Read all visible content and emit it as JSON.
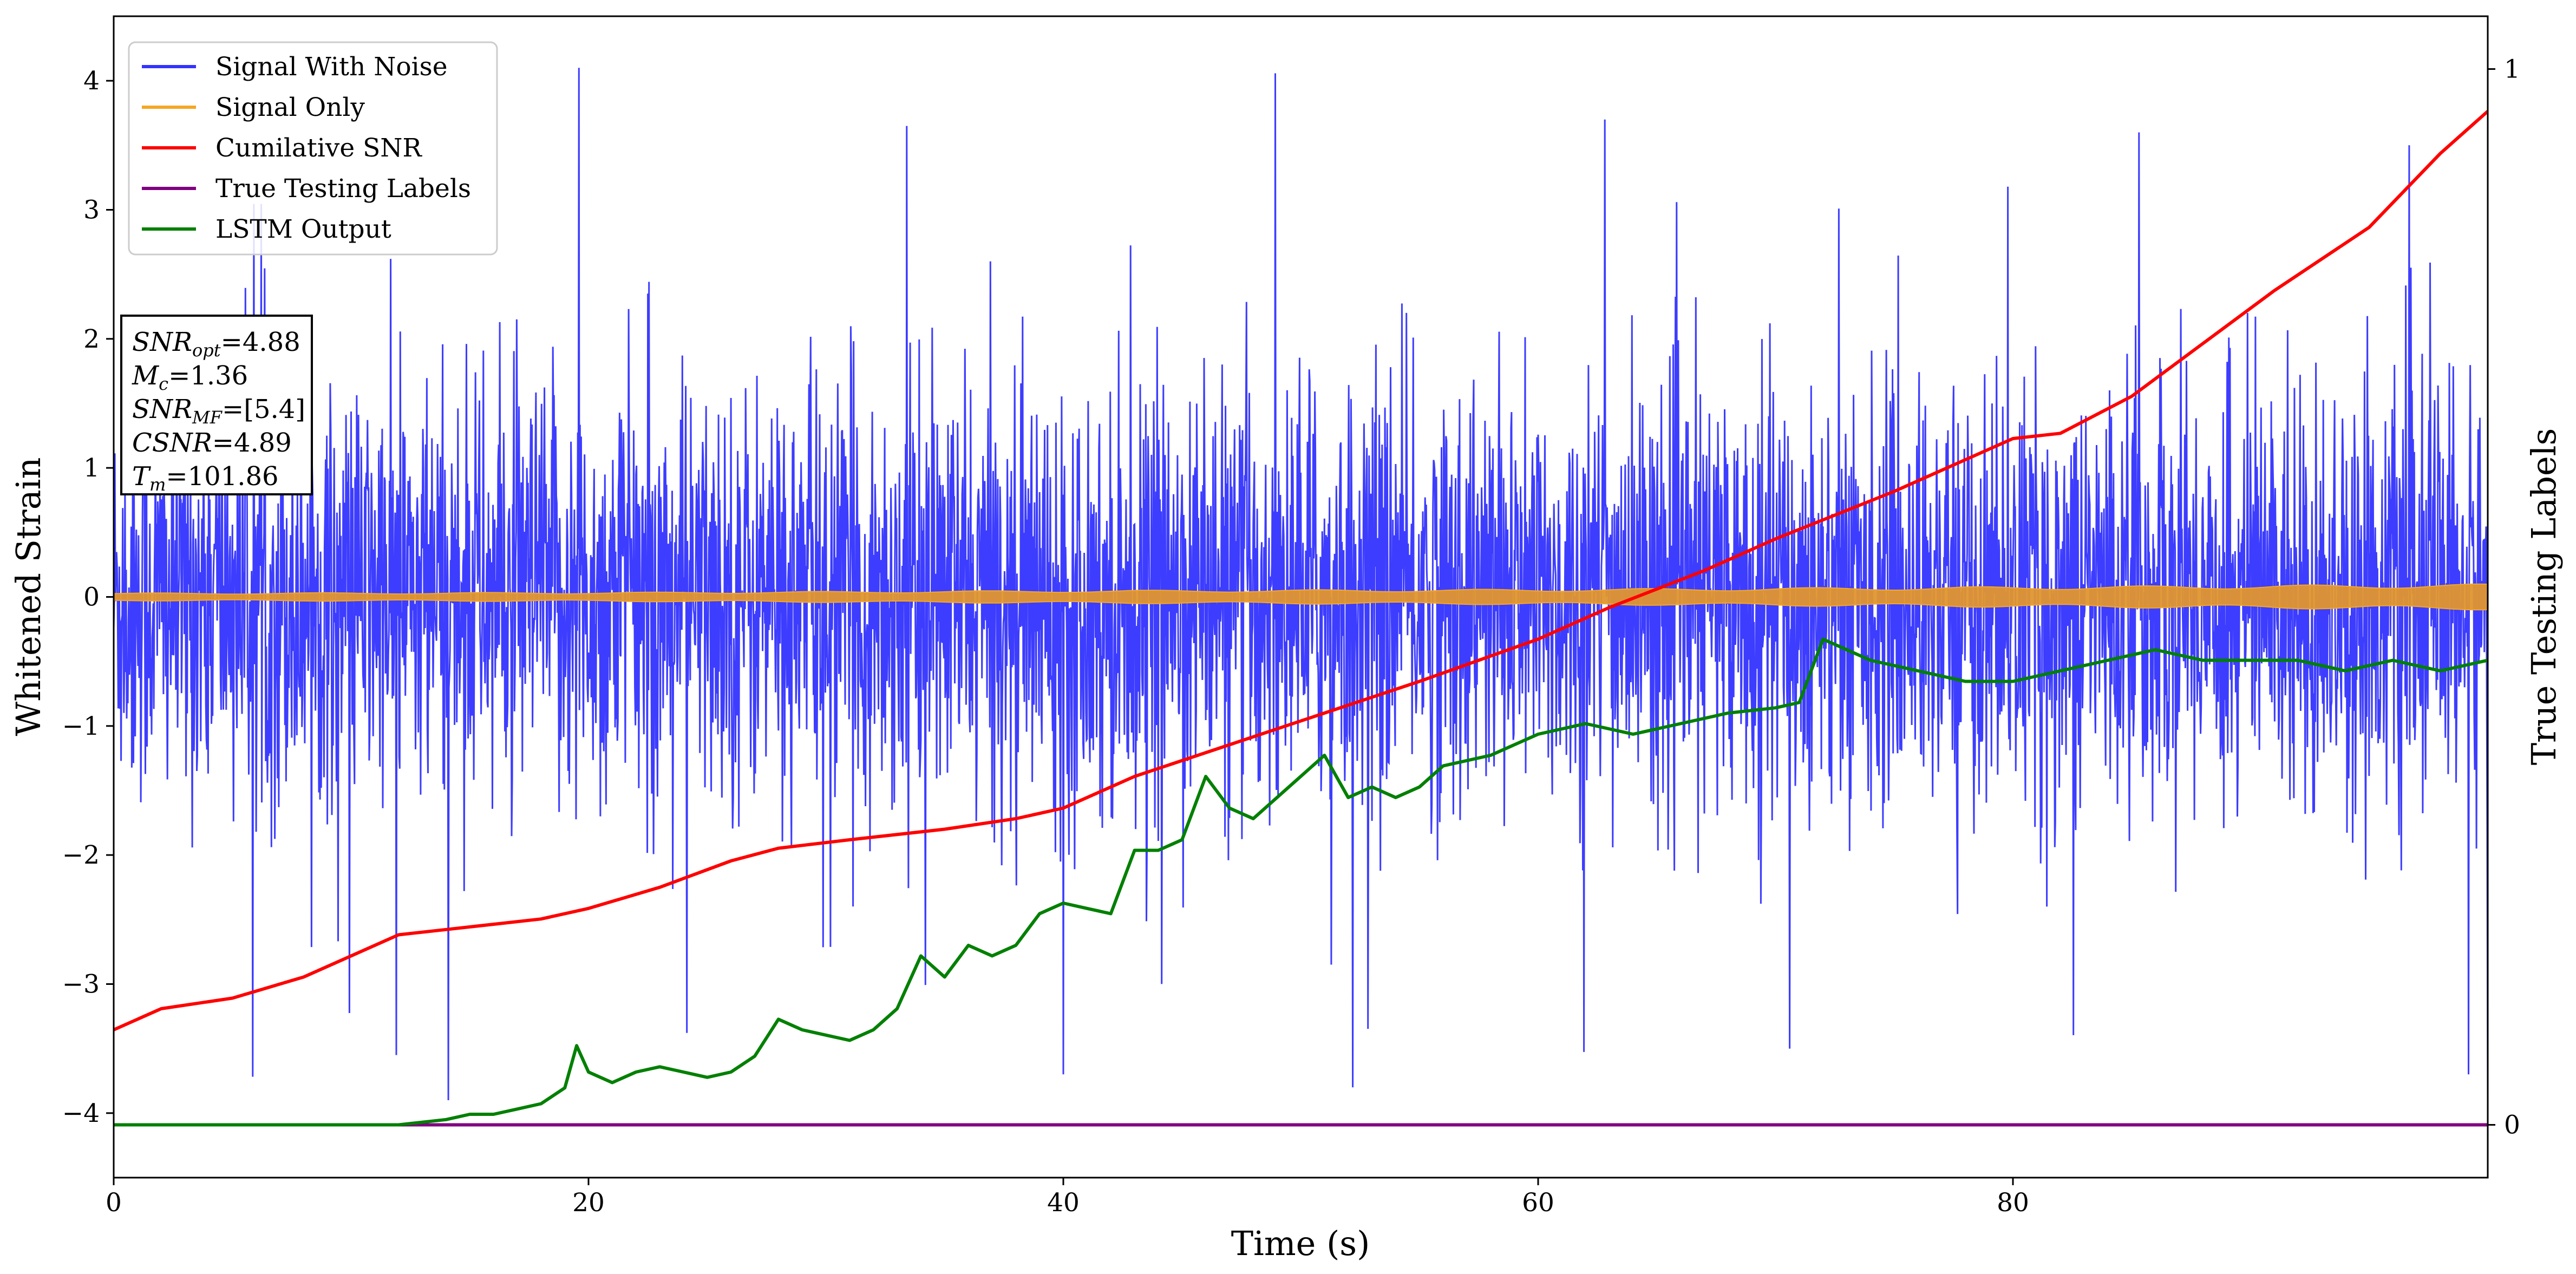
{
  "chart_data": {
    "type": "line",
    "xlabel": "Time (s)",
    "ylabel": "Whitened Strain",
    "y2label": "True Testing Labels",
    "xlim": [
      0,
      100
    ],
    "ylim": [
      -4.5,
      4.5
    ],
    "y2lim": [
      -0.05,
      1.05
    ],
    "xticks": [
      "0",
      "20",
      "40",
      "60",
      "80"
    ],
    "yticks": [
      "−4",
      "−3",
      "−2",
      "−1",
      "0",
      "1",
      "2",
      "3",
      "4"
    ],
    "y2ticks": [
      "0",
      "1"
    ],
    "legend_position": "top-left",
    "series": [
      {
        "name": "Signal With Noise",
        "axis": "left",
        "color": "#3333ff",
        "note_style": "dense noisy trace",
        "peak_spikes": [
          {
            "x": 19.6,
            "y": 4.1
          },
          {
            "x": 52.2,
            "y": -3.8
          },
          {
            "x": 11.9,
            "y": -3.55
          },
          {
            "x": 99.2,
            "y": -3.7
          },
          {
            "x": 40.0,
            "y": -3.7
          },
          {
            "x": 70.6,
            "y": -3.5
          },
          {
            "x": 33.4,
            "y": 3.65
          },
          {
            "x": 62.8,
            "y": 3.7
          },
          {
            "x": 85.3,
            "y": 3.6
          },
          {
            "x": 96.7,
            "y": 3.5
          }
        ]
      },
      {
        "name": "Signal Only",
        "axis": "left",
        "color": "#f5a623",
        "amplitude_envelope": [
          [
            0,
            0.03
          ],
          [
            20,
            0.035
          ],
          [
            40,
            0.05
          ],
          [
            60,
            0.06
          ],
          [
            80,
            0.08
          ],
          [
            100,
            0.1
          ]
        ]
      },
      {
        "name": "Cumilative SNR",
        "axis": "right",
        "color": "#ff0000",
        "points": [
          [
            0,
            0.09
          ],
          [
            2,
            0.11
          ],
          [
            5,
            0.12
          ],
          [
            8,
            0.14
          ],
          [
            10,
            0.16
          ],
          [
            12,
            0.18
          ],
          [
            14,
            0.185
          ],
          [
            18,
            0.195
          ],
          [
            20,
            0.205
          ],
          [
            23,
            0.225
          ],
          [
            26,
            0.25
          ],
          [
            28,
            0.262
          ],
          [
            31,
            0.27
          ],
          [
            35,
            0.28
          ],
          [
            38,
            0.29
          ],
          [
            40,
            0.3
          ],
          [
            43,
            0.33
          ],
          [
            47,
            0.36
          ],
          [
            51,
            0.39
          ],
          [
            55,
            0.42
          ],
          [
            60,
            0.46
          ],
          [
            63,
            0.49
          ],
          [
            67,
            0.525
          ],
          [
            70,
            0.555
          ],
          [
            75,
            0.6
          ],
          [
            78,
            0.63
          ],
          [
            80,
            0.65
          ],
          [
            82,
            0.655
          ],
          [
            85,
            0.69
          ],
          [
            88,
            0.74
          ],
          [
            91,
            0.79
          ],
          [
            95,
            0.85
          ],
          [
            98,
            0.92
          ],
          [
            100,
            0.96
          ]
        ]
      },
      {
        "name": "True Testing Labels",
        "axis": "right",
        "color": "#800080",
        "points": [
          [
            0,
            0
          ],
          [
            100,
            0
          ]
        ]
      },
      {
        "name": "LSTM Output",
        "axis": "right",
        "color": "#008000",
        "points": [
          [
            0,
            0
          ],
          [
            10,
            0
          ],
          [
            12,
            0
          ],
          [
            14,
            0.005
          ],
          [
            15,
            0.01
          ],
          [
            16,
            0.01
          ],
          [
            17,
            0.015
          ],
          [
            18,
            0.02
          ],
          [
            19,
            0.035
          ],
          [
            19.5,
            0.075
          ],
          [
            20,
            0.05
          ],
          [
            21,
            0.04
          ],
          [
            22,
            0.05
          ],
          [
            23,
            0.055
          ],
          [
            24,
            0.05
          ],
          [
            25,
            0.045
          ],
          [
            26,
            0.05
          ],
          [
            27,
            0.065
          ],
          [
            28,
            0.1
          ],
          [
            29,
            0.09
          ],
          [
            30,
            0.085
          ],
          [
            31,
            0.08
          ],
          [
            32,
            0.09
          ],
          [
            33,
            0.11
          ],
          [
            34,
            0.16
          ],
          [
            35,
            0.14
          ],
          [
            36,
            0.17
          ],
          [
            37,
            0.16
          ],
          [
            38,
            0.17
          ],
          [
            39,
            0.2
          ],
          [
            40,
            0.21
          ],
          [
            41,
            0.205
          ],
          [
            42,
            0.2
          ],
          [
            43,
            0.26
          ],
          [
            44,
            0.26
          ],
          [
            45,
            0.27
          ],
          [
            46,
            0.33
          ],
          [
            47,
            0.3
          ],
          [
            48,
            0.29
          ],
          [
            50,
            0.33
          ],
          [
            51,
            0.35
          ],
          [
            52,
            0.31
          ],
          [
            53,
            0.32
          ],
          [
            54,
            0.31
          ],
          [
            55,
            0.32
          ],
          [
            56,
            0.34
          ],
          [
            58,
            0.35
          ],
          [
            60,
            0.37
          ],
          [
            62,
            0.38
          ],
          [
            64,
            0.37
          ],
          [
            66,
            0.38
          ],
          [
            68,
            0.39
          ],
          [
            70,
            0.395
          ],
          [
            71,
            0.4
          ],
          [
            72,
            0.46
          ],
          [
            73,
            0.45
          ],
          [
            74,
            0.44
          ],
          [
            76,
            0.43
          ],
          [
            78,
            0.42
          ],
          [
            80,
            0.42
          ],
          [
            82,
            0.43
          ],
          [
            84,
            0.44
          ],
          [
            86,
            0.45
          ],
          [
            88,
            0.44
          ],
          [
            90,
            0.44
          ],
          [
            92,
            0.44
          ],
          [
            94,
            0.43
          ],
          [
            96,
            0.44
          ],
          [
            98,
            0.43
          ],
          [
            100,
            0.44
          ]
        ]
      }
    ],
    "annotation": {
      "lines": [
        {
          "label": "SNR",
          "sub": "opt",
          "value": "=4.88"
        },
        {
          "label": "M",
          "sub": "c",
          "value": "=1.36"
        },
        {
          "label": "SNR",
          "sub": "MF",
          "value": "=[5.4]"
        },
        {
          "label": "CSNR",
          "sub": "",
          "value": "=4.89"
        },
        {
          "label": "T",
          "sub": "m",
          "value": "=101.86"
        }
      ]
    }
  }
}
